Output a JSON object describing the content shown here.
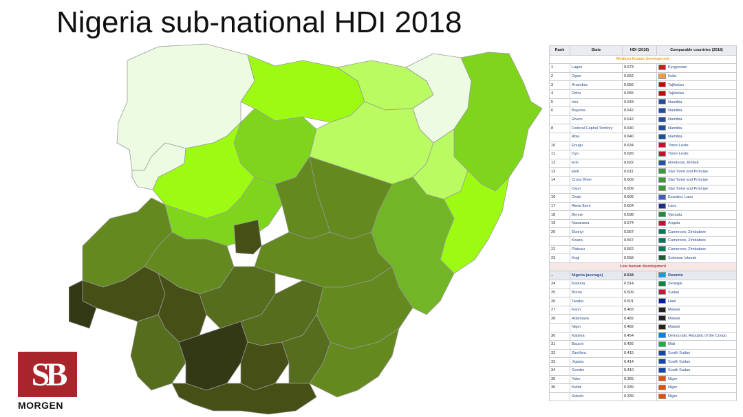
{
  "title": "Nigeria sub-national HDI 2018",
  "logo": {
    "letters": "SB",
    "word": "MORGEN"
  },
  "map_colors": {
    "very_light": "#ecfbe2",
    "light_1": "#b9fb61",
    "bright": "#9cfa13",
    "medium_1": "#7fd51c",
    "medium_2": "#72b526",
    "olive_1": "#63891f",
    "olive_2": "#566d1d",
    "dark_1": "#464f15",
    "dark_2": "#333815"
  },
  "table": {
    "headers": [
      "Rank",
      "State",
      "HDI (2018)",
      "Comparable countries (2018)"
    ],
    "medium_label": "Medium human development",
    "low_label": "Low human development",
    "medium_rows": [
      {
        "rank": "1",
        "state": "Lagos",
        "hdi": "0.673",
        "country": "Kyrgyzstan",
        "flag": "#d61a1a"
      },
      {
        "rank": "2",
        "state": "Ogun",
        "hdi": "0.662",
        "country": "India",
        "flag": "#f29b38"
      },
      {
        "rank": "3",
        "state": "Anambra",
        "hdi": "0.656",
        "country": "Tajikistan",
        "flag": "#cc0000"
      },
      {
        "rank": "4",
        "state": "Delta",
        "hdi": "0.655",
        "country": "Tajikistan",
        "flag": "#cc0000"
      },
      {
        "rank": "5",
        "state": "Imo",
        "hdi": "0.643",
        "country": "Namibia",
        "flag": "#1f4ea1"
      },
      {
        "rank": "6",
        "state": "Bayelsa",
        "hdi": "0.642",
        "country": "Namibia",
        "flag": "#1f4ea1"
      },
      {
        "rank": "",
        "state": "Rivers",
        "hdi": "0.642",
        "country": "Namibia",
        "flag": "#1f4ea1"
      },
      {
        "rank": "8",
        "state": "Federal Capital Territory",
        "hdi": "0.640",
        "country": "Namibia",
        "flag": "#1f4ea1"
      },
      {
        "rank": "",
        "state": "Abia",
        "hdi": "0.640",
        "country": "Namibia",
        "flag": "#1f4ea1"
      },
      {
        "rank": "10",
        "state": "Enugu",
        "hdi": "0.634",
        "country": "Timor-Leste",
        "flag": "#c8102e"
      },
      {
        "rank": "11",
        "state": "Oyo",
        "hdi": "0.626",
        "country": "Timor-Leste",
        "flag": "#c8102e"
      },
      {
        "rank": "12",
        "state": "Edo",
        "hdi": "0.622",
        "country": "Honduras, Kiribati",
        "flag": "#1e55a8"
      },
      {
        "rank": "13",
        "state": "Ekiti",
        "hdi": "0.611",
        "country": "São Tomé and Príncipe",
        "flag": "#3a9b35"
      },
      {
        "rank": "14",
        "state": "Cross River",
        "hdi": "0.609",
        "country": "São Tomé and Príncipe",
        "flag": "#3a9b35"
      },
      {
        "rank": "",
        "state": "Osun",
        "hdi": "0.609",
        "country": "São Tomé and Príncipe",
        "flag": "#3a9b35"
      },
      {
        "rank": "16",
        "state": "Ondo",
        "hdi": "0.606",
        "country": "Eswatini, Laos",
        "flag": "#3e5eb9"
      },
      {
        "rank": "17",
        "state": "Akwa Ibom",
        "hdi": "0.604",
        "country": "Laos",
        "flag": "#1a2f8c"
      },
      {
        "rank": "18",
        "state": "Benue",
        "hdi": "0.598",
        "country": "Vanuatu",
        "flag": "#1c8c3a"
      },
      {
        "rank": "19",
        "state": "Nasarawa",
        "hdi": "0.574",
        "country": "Angola",
        "flag": "#cc092f"
      },
      {
        "rank": "20",
        "state": "Ebonyi",
        "hdi": "0.567",
        "country": "Cameroon, Zimbabwe",
        "flag": "#007a5e"
      },
      {
        "rank": "",
        "state": "Kwara",
        "hdi": "0.567",
        "country": "Cameroon, Zimbabwe",
        "flag": "#007a5e"
      },
      {
        "rank": "22",
        "state": "Plateau",
        "hdi": "0.562",
        "country": "Cameroon, Zimbabwe",
        "flag": "#007a5e"
      },
      {
        "rank": "23",
        "state": "Kogi",
        "hdi": "0.558",
        "country": "Solomon Islands",
        "flag": "#215b33"
      }
    ],
    "nigeria_row": {
      "rank": "–",
      "state": "Nigeria (average)",
      "hdi": "0.534",
      "country": "Rwanda",
      "flag": "#00a3dd"
    },
    "low_rows": [
      {
        "rank": "24",
        "state": "Kaduna",
        "hdi": "0.514",
        "country": "Senegal",
        "flag": "#00853f"
      },
      {
        "rank": "25",
        "state": "Borno",
        "hdi": "0.509",
        "country": "Sudan",
        "flag": "#d21034"
      },
      {
        "rank": "26",
        "state": "Taraba",
        "hdi": "0.501",
        "country": "Haiti",
        "flag": "#00209f"
      },
      {
        "rank": "27",
        "state": "Kano",
        "hdi": "0.483",
        "country": "Malawi",
        "flag": "#222222"
      },
      {
        "rank": "28",
        "state": "Adamawa",
        "hdi": "0.482",
        "country": "Malawi",
        "flag": "#222222"
      },
      {
        "rank": "",
        "state": "Niger",
        "hdi": "0.482",
        "country": "Malawi",
        "flag": "#222222"
      },
      {
        "rank": "30",
        "state": "Katsina",
        "hdi": "0.454",
        "country": "Democratic Republic of the Congo",
        "flag": "#007fff"
      },
      {
        "rank": "31",
        "state": "Bauchi",
        "hdi": "0.426",
        "country": "Mali",
        "flag": "#14b53a"
      },
      {
        "rank": "32",
        "state": "Zamfara",
        "hdi": "0.415",
        "country": "South Sudan",
        "flag": "#0f47af"
      },
      {
        "rank": "33",
        "state": "Jigawa",
        "hdi": "0.414",
        "country": "South Sudan",
        "flag": "#0f47af"
      },
      {
        "rank": "34",
        "state": "Gombe",
        "hdi": "0.410",
        "country": "South Sudan",
        "flag": "#0f47af"
      },
      {
        "rank": "35",
        "state": "Yobe",
        "hdi": "0.365",
        "country": "Niger",
        "flag": "#e05206"
      },
      {
        "rank": "36",
        "state": "Kebbi",
        "hdi": "0.339",
        "country": "Niger",
        "flag": "#e05206"
      },
      {
        "rank": "",
        "state": "Sokoto",
        "hdi": "0.339",
        "country": "Niger",
        "flag": "#e05206"
      }
    ]
  }
}
